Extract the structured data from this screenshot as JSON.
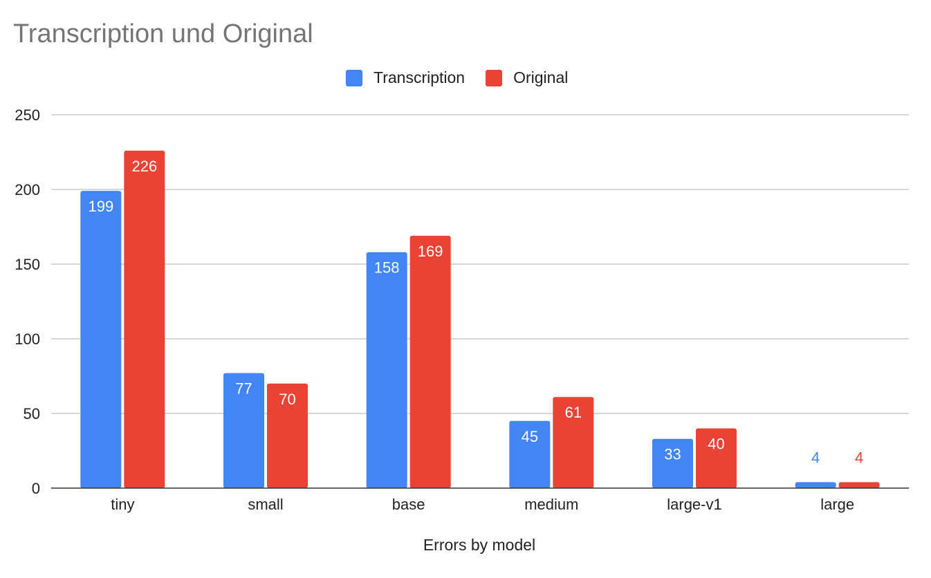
{
  "chart_data": {
    "type": "bar",
    "title": "Transcription und Original",
    "xlabel": "Errors by model",
    "ylabel": "",
    "categories": [
      "tiny",
      "small",
      "base",
      "medium",
      "large-v1",
      "large"
    ],
    "series": [
      {
        "name": "Transcription",
        "color": "#4285f4",
        "values": [
          199,
          77,
          158,
          45,
          33,
          4
        ]
      },
      {
        "name": "Original",
        "color": "#ea4335",
        "values": [
          226,
          70,
          169,
          61,
          40,
          4
        ]
      }
    ],
    "ylim": [
      0,
      250
    ],
    "yticks": [
      0,
      50,
      100,
      150,
      200,
      250
    ],
    "grid": true,
    "legend_position": "top-center",
    "data_labels": true
  }
}
